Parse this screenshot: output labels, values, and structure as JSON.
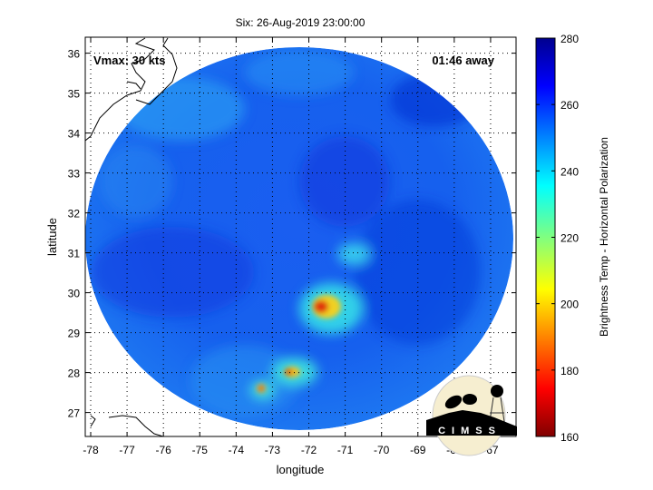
{
  "title": "Six: 26-Aug-2019 23:00:00",
  "annotations": {
    "vmax": "Vmax: 30 kts",
    "time_away": "01:46 away"
  },
  "logo": {
    "text": "CIMSS"
  },
  "chart_data": {
    "type": "heatmap",
    "title": "Six: 26-Aug-2019 23:00:00",
    "xlabel": "longitude",
    "ylabel": "latitude",
    "xlim": [
      -78.15,
      -66.3
    ],
    "ylim": [
      26.4,
      36.4
    ],
    "x_ticks": [
      "-78",
      "-77",
      "-76",
      "-75",
      "-74",
      "-73",
      "-72",
      "-71",
      "-70",
      "-69",
      "-68",
      "-67"
    ],
    "y_ticks": [
      "27",
      "28",
      "29",
      "30",
      "31",
      "32",
      "33",
      "34",
      "35",
      "36"
    ],
    "grid": true,
    "colorbar": {
      "label": "Brightness Temp - Horizontal Polarization",
      "range": [
        160,
        280
      ],
      "ticks": [
        "160",
        "180",
        "200",
        "220",
        "240",
        "260",
        "280"
      ],
      "colormap": "jet"
    },
    "features": [
      {
        "name": "cold core",
        "lon": -71.8,
        "lat": 29.6,
        "value": 175
      },
      {
        "name": "cold spot",
        "lon": -72.6,
        "lat": 28.0,
        "value": 180
      },
      {
        "name": "cold spot",
        "lon": -73.3,
        "lat": 27.6,
        "value": 185
      }
    ],
    "swath_center": {
      "lon": -72.4,
      "lat": 31.4
    }
  },
  "colors": {
    "background_cold": "#0a2fd6",
    "background_warm": "#1e6cf0",
    "highlight": "#29c8f0"
  }
}
